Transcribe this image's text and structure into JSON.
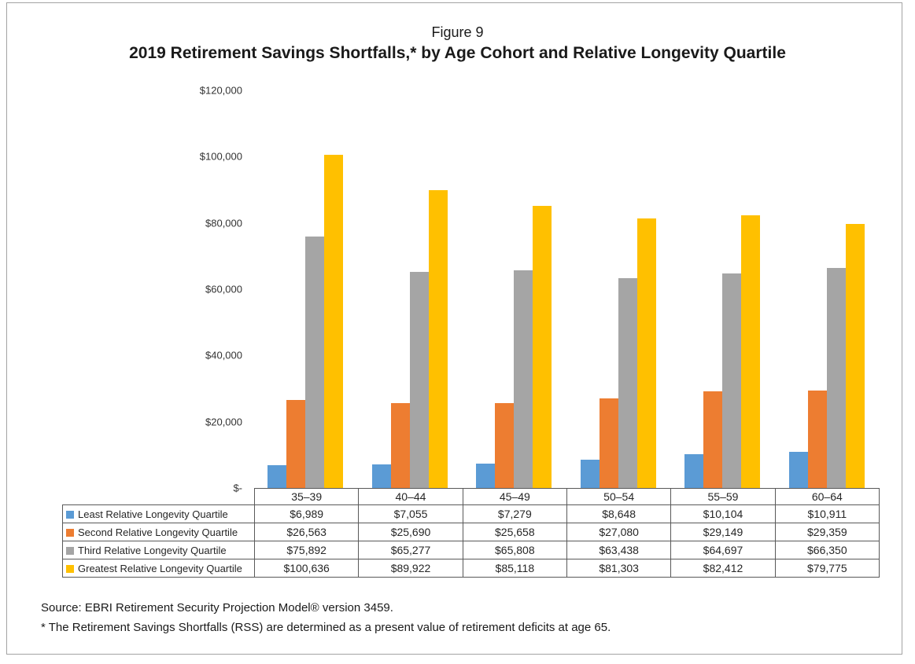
{
  "chart_data": {
    "type": "bar",
    "figure_label": "Figure 9",
    "title": "2019 Retirement Savings Shortfalls,* by Age Cohort and Relative Longevity Quartile",
    "categories": [
      "35–39",
      "40–44",
      "45–49",
      "50–54",
      "55–59",
      "60–64"
    ],
    "series": [
      {
        "name": "Least Relative Longevity Quartile",
        "color": "#5B9BD5",
        "values": [
          6989,
          7055,
          7279,
          8648,
          10104,
          10911
        ],
        "display": [
          "$6,989",
          "$7,055",
          "$7,279",
          "$8,648",
          "$10,104",
          "$10,911"
        ]
      },
      {
        "name": "Second Relative  Longevity Quartile",
        "color": "#ED7D31",
        "values": [
          26563,
          25690,
          25658,
          27080,
          29149,
          29359
        ],
        "display": [
          "$26,563",
          "$25,690",
          "$25,658",
          "$27,080",
          "$29,149",
          "$29,359"
        ]
      },
      {
        "name": "Third Relative Longevity Quartile",
        "color": "#A5A5A5",
        "values": [
          75892,
          65277,
          65808,
          63438,
          64697,
          66350
        ],
        "display": [
          "$75,892",
          "$65,277",
          "$65,808",
          "$63,438",
          "$64,697",
          "$66,350"
        ]
      },
      {
        "name": "Greatest Relative Longevity Quartile",
        "color": "#FFC000",
        "values": [
          100636,
          89922,
          85118,
          81303,
          82412,
          79775
        ],
        "display": [
          "$100,636",
          "$89,922",
          "$85,118",
          "$81,303",
          "$82,412",
          "$79,775"
        ]
      }
    ],
    "y_axis": {
      "min": 0,
      "max": 120000,
      "ticks": [
        {
          "label": "$120,000",
          "value": 120000
        },
        {
          "label": "$100,000",
          "value": 100000
        },
        {
          "label": "$80,000",
          "value": 80000
        },
        {
          "label": "$60,000",
          "value": 60000
        },
        {
          "label": "$40,000",
          "value": 40000
        },
        {
          "label": "$20,000",
          "value": 20000
        },
        {
          "label": "$-",
          "value": 0
        }
      ]
    },
    "gridlines": false,
    "legend_position": "data-table-left"
  },
  "notes": {
    "source": "Source: EBRI Retirement Security Projection Model® version 3459.",
    "footnote": "* The Retirement Savings Shortfalls (RSS) are determined as a present value of retirement deficits at age 65."
  },
  "style": {
    "frame_border": "#a3a3a3",
    "table_border": "#595959"
  }
}
